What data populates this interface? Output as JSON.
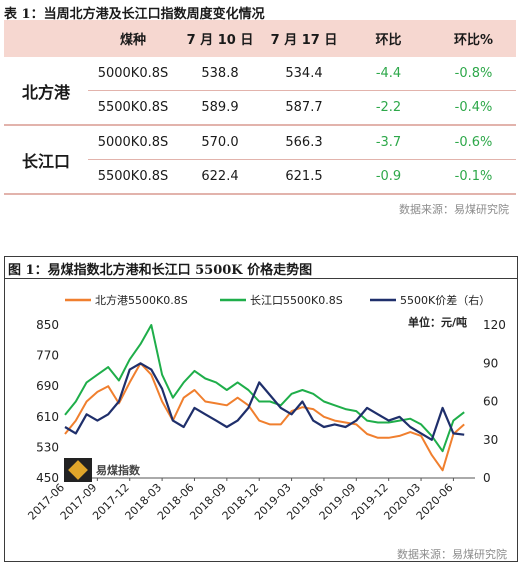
{
  "table1": {
    "title": "表 1：当周北方港及长江口指数周度变化情况",
    "headers": [
      "",
      "煤种",
      "7 月 10 日",
      "7 月 17 日",
      "环比",
      "环比%"
    ],
    "groups": [
      {
        "name": "北方港",
        "rows": [
          {
            "coal": "5000K0.8S",
            "jul10": "538.8",
            "jul17": "534.4",
            "wow": "-4.4",
            "wow_pct": "-0.8%"
          },
          {
            "coal": "5500K0.8S",
            "jul10": "589.9",
            "jul17": "587.7",
            "wow": "-2.2",
            "wow_pct": "-0.4%"
          }
        ]
      },
      {
        "name": "长江口",
        "rows": [
          {
            "coal": "5000K0.8S",
            "jul10": "570.0",
            "jul17": "566.3",
            "wow": "-3.7",
            "wow_pct": "-0.6%"
          },
          {
            "coal": "5500K0.8S",
            "jul10": "622.4",
            "jul17": "621.5",
            "wow": "-0.9",
            "wow_pct": "-0.1%"
          }
        ]
      }
    ],
    "source": "数据来源：易煤研究院",
    "header_bg": "#f6d7d0",
    "change_color": "#2ea84a"
  },
  "figure1": {
    "title": "图 1：易煤指数北方港和长江口 5500K 价格走势图",
    "unit_label": "单位：元/吨",
    "source": "数据来源：易煤研究院",
    "logo_text": "易煤指数",
    "logo_icon": "yimei-logo-icon"
  },
  "chart_data": {
    "type": "line",
    "x_ticks": [
      "2017-06",
      "2017-09",
      "2017-12",
      "2018-03",
      "2018-06",
      "2018-09",
      "2018-12",
      "2019-03",
      "2019-06",
      "2019-09",
      "2019-12",
      "2020-03",
      "2020-06"
    ],
    "x_start": "2017-06",
    "x_end": "2020-08",
    "y_left": {
      "ticks": [
        450,
        530,
        610,
        690,
        770,
        850
      ],
      "range": [
        450,
        850
      ]
    },
    "y_right": {
      "ticks": [
        0,
        30,
        60,
        90,
        120
      ],
      "range": [
        0,
        120
      ]
    },
    "legend_position": "top",
    "series": [
      {
        "name": "北方港5500K0.8S",
        "axis": "left",
        "color": "#f07f2e",
        "points": [
          [
            "2017-06",
            565
          ],
          [
            "2017-07",
            600
          ],
          [
            "2017-08",
            650
          ],
          [
            "2017-09",
            675
          ],
          [
            "2017-10",
            690
          ],
          [
            "2017-11",
            645
          ],
          [
            "2017-12",
            700
          ],
          [
            "2018-01",
            750
          ],
          [
            "2018-02",
            720
          ],
          [
            "2018-03",
            650
          ],
          [
            "2018-04",
            600
          ],
          [
            "2018-05",
            660
          ],
          [
            "2018-06",
            680
          ],
          [
            "2018-07",
            650
          ],
          [
            "2018-08",
            645
          ],
          [
            "2018-09",
            640
          ],
          [
            "2018-10",
            660
          ],
          [
            "2018-11",
            640
          ],
          [
            "2018-12",
            600
          ],
          [
            "2019-01",
            590
          ],
          [
            "2019-02",
            590
          ],
          [
            "2019-03",
            625
          ],
          [
            "2019-04",
            635
          ],
          [
            "2019-05",
            630
          ],
          [
            "2019-06",
            610
          ],
          [
            "2019-07",
            600
          ],
          [
            "2019-08",
            595
          ],
          [
            "2019-09",
            590
          ],
          [
            "2019-10",
            565
          ],
          [
            "2019-11",
            555
          ],
          [
            "2019-12",
            555
          ],
          [
            "2020-01",
            560
          ],
          [
            "2020-02",
            570
          ],
          [
            "2020-03",
            560
          ],
          [
            "2020-04",
            510
          ],
          [
            "2020-05",
            470
          ],
          [
            "2020-06",
            565
          ],
          [
            "2020-07",
            590
          ]
        ]
      },
      {
        "name": "长江口5500K0.8S",
        "axis": "left",
        "color": "#1fae4a",
        "points": [
          [
            "2017-06",
            615
          ],
          [
            "2017-07",
            650
          ],
          [
            "2017-08",
            700
          ],
          [
            "2017-09",
            720
          ],
          [
            "2017-10",
            740
          ],
          [
            "2017-11",
            705
          ],
          [
            "2017-12",
            760
          ],
          [
            "2018-01",
            800
          ],
          [
            "2018-02",
            850
          ],
          [
            "2018-03",
            720
          ],
          [
            "2018-04",
            660
          ],
          [
            "2018-05",
            700
          ],
          [
            "2018-06",
            730
          ],
          [
            "2018-07",
            710
          ],
          [
            "2018-08",
            700
          ],
          [
            "2018-09",
            680
          ],
          [
            "2018-10",
            700
          ],
          [
            "2018-11",
            680
          ],
          [
            "2018-12",
            650
          ],
          [
            "2019-01",
            650
          ],
          [
            "2019-02",
            640
          ],
          [
            "2019-03",
            670
          ],
          [
            "2019-04",
            680
          ],
          [
            "2019-05",
            670
          ],
          [
            "2019-06",
            650
          ],
          [
            "2019-07",
            640
          ],
          [
            "2019-08",
            630
          ],
          [
            "2019-09",
            625
          ],
          [
            "2019-10",
            600
          ],
          [
            "2019-11",
            595
          ],
          [
            "2019-12",
            595
          ],
          [
            "2020-01",
            600
          ],
          [
            "2020-02",
            605
          ],
          [
            "2020-03",
            590
          ],
          [
            "2020-04",
            560
          ],
          [
            "2020-05",
            520
          ],
          [
            "2020-06",
            600
          ],
          [
            "2020-07",
            622
          ]
        ]
      },
      {
        "name": "5500K价差（右）",
        "axis": "right",
        "color": "#1f2f6b",
        "points": [
          [
            "2017-06",
            40
          ],
          [
            "2017-07",
            35
          ],
          [
            "2017-08",
            50
          ],
          [
            "2017-09",
            45
          ],
          [
            "2017-10",
            50
          ],
          [
            "2017-11",
            60
          ],
          [
            "2017-12",
            85
          ],
          [
            "2018-01",
            90
          ],
          [
            "2018-02",
            85
          ],
          [
            "2018-03",
            70
          ],
          [
            "2018-04",
            45
          ],
          [
            "2018-05",
            40
          ],
          [
            "2018-06",
            55
          ],
          [
            "2018-07",
            50
          ],
          [
            "2018-08",
            45
          ],
          [
            "2018-09",
            40
          ],
          [
            "2018-10",
            45
          ],
          [
            "2018-11",
            55
          ],
          [
            "2018-12",
            75
          ],
          [
            "2019-01",
            65
          ],
          [
            "2019-02",
            55
          ],
          [
            "2019-03",
            50
          ],
          [
            "2019-04",
            60
          ],
          [
            "2019-05",
            45
          ],
          [
            "2019-06",
            40
          ],
          [
            "2019-07",
            42
          ],
          [
            "2019-08",
            40
          ],
          [
            "2019-09",
            45
          ],
          [
            "2019-10",
            55
          ],
          [
            "2019-11",
            50
          ],
          [
            "2019-12",
            45
          ],
          [
            "2020-01",
            48
          ],
          [
            "2020-02",
            40
          ],
          [
            "2020-03",
            35
          ],
          [
            "2020-04",
            30
          ],
          [
            "2020-05",
            55
          ],
          [
            "2020-06",
            35
          ],
          [
            "2020-07",
            34
          ]
        ]
      }
    ]
  }
}
